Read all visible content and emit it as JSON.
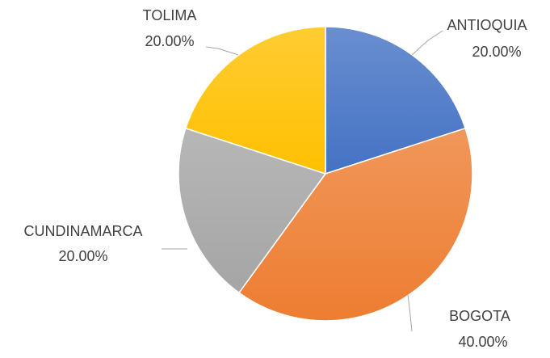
{
  "chart_data": {
    "type": "pie",
    "categories": [
      "ANTIOQUIA",
      "BOGOTA",
      "CUNDINAMARCA",
      "TOLIMA"
    ],
    "values": [
      20,
      40,
      20,
      20
    ],
    "value_labels": [
      "20.00%",
      "40.00%",
      "20.00%",
      "20.00%"
    ],
    "colors": [
      "#4472c4",
      "#ed7d31",
      "#a5a5a5",
      "#ffc000"
    ]
  }
}
